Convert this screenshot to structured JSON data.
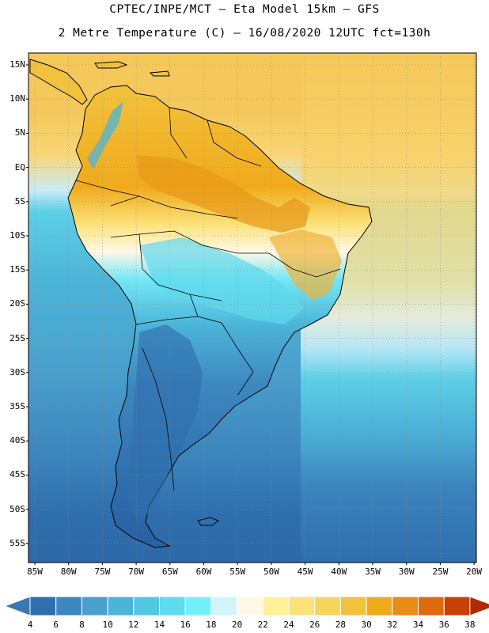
{
  "header": {
    "line1": "CPTEC/INPE/MCT –  Eta Model 15km – GFS",
    "line2": "2 Metre Temperature (C) – 16/08/2020 12UTC fct=130h"
  },
  "map": {
    "lat_labels": [
      "15N",
      "10N",
      "5N",
      "EQ",
      "5S",
      "10S",
      "15S",
      "20S",
      "25S",
      "30S",
      "35S",
      "40S",
      "45S",
      "50S",
      "55S"
    ],
    "lon_labels": [
      "85W",
      "80W",
      "75W",
      "70W",
      "65W",
      "60W",
      "55W",
      "50W",
      "45W",
      "40W",
      "35W",
      "30W",
      "25W",
      "20W"
    ]
  },
  "colorbar": {
    "labels": [
      "4",
      "6",
      "8",
      "10",
      "12",
      "14",
      "16",
      "18",
      "20",
      "22",
      "24",
      "26",
      "28",
      "30",
      "32",
      "34",
      "36",
      "38"
    ],
    "colors": [
      "#3a78b4",
      "#2f6fad",
      "#3d87bf",
      "#4aa0cc",
      "#4cb4d8",
      "#52c8e2",
      "#5fdcee",
      "#72f0fa",
      "#d2f4fa",
      "#fff8e6",
      "#fff09a",
      "#fbe27a",
      "#f7d45a",
      "#f2c23e",
      "#f0aa1c",
      "#e88c16",
      "#de6a0e",
      "#c84006",
      "#b02a02"
    ]
  }
}
